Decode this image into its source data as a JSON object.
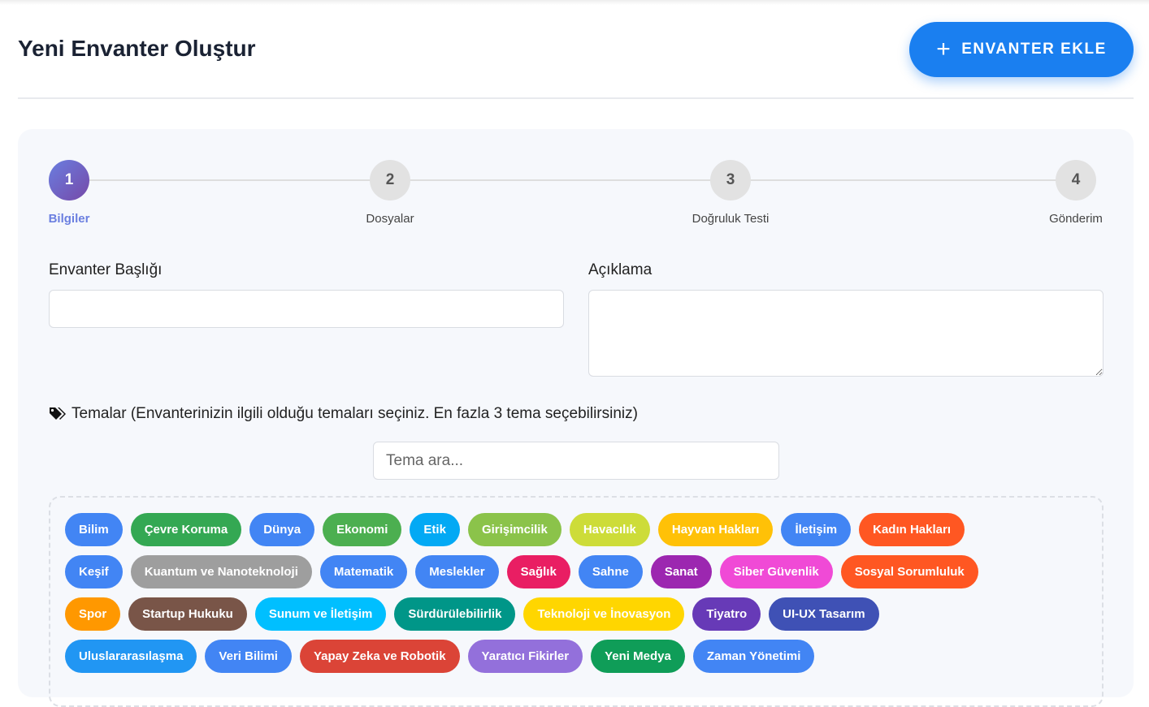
{
  "header": {
    "title": "Yeni Envanter Oluştur",
    "add_button": "ENVANTER EKLE",
    "add_icon": "plus-icon"
  },
  "stepper": {
    "active": 1,
    "steps": [
      {
        "num": "1",
        "label": "Bilgiler"
      },
      {
        "num": "2",
        "label": "Dosyalar"
      },
      {
        "num": "3",
        "label": "Doğruluk Testi"
      },
      {
        "num": "4",
        "label": "Gönderim"
      }
    ]
  },
  "form": {
    "title_label": "Envanter Başlığı",
    "title_value": "",
    "desc_label": "Açıklama",
    "desc_value": "",
    "themes_label": "Temalar (Envanterinizin ilgili olduğu temaları seçiniz. En fazla 3 tema seçebilirsiniz)",
    "themes_icon": "tags-icon",
    "search_placeholder": "Tema ara..."
  },
  "tag_rows": [
    [
      {
        "label": "Bilim",
        "color": "#4285f4"
      },
      {
        "label": "Çevre Koruma",
        "color": "#34a853"
      },
      {
        "label": "Dünya",
        "color": "#4285f4"
      },
      {
        "label": "Ekonomi",
        "color": "#4caf50"
      },
      {
        "label": "Etik",
        "color": "#03a9f4"
      },
      {
        "label": "Girişimcilik",
        "color": "#8bc34a"
      },
      {
        "label": "Havacılık",
        "color": "#cddc39"
      },
      {
        "label": "Hayvan Hakları",
        "color": "#ffc107"
      },
      {
        "label": "İletişim",
        "color": "#4285f4"
      },
      {
        "label": "Kadın Hakları",
        "color": "#ff5722"
      }
    ],
    [
      {
        "label": "Keşif",
        "color": "#4285f4"
      },
      {
        "label": "Kuantum ve Nanoteknoloji",
        "color": "#9e9e9e"
      },
      {
        "label": "Matematik",
        "color": "#4285f4"
      },
      {
        "label": "Meslekler",
        "color": "#4285f4"
      },
      {
        "label": "Sağlık",
        "color": "#e91e63"
      },
      {
        "label": "Sahne",
        "color": "#4285f4"
      },
      {
        "label": "Sanat",
        "color": "#9c27b0"
      },
      {
        "label": "Siber Güvenlik",
        "color": "#f04ad6"
      },
      {
        "label": "Sosyal Sorumluluk",
        "color": "#ff5722"
      }
    ],
    [
      {
        "label": "Spor",
        "color": "#ff9800"
      },
      {
        "label": "Startup Hukuku",
        "color": "#795548"
      },
      {
        "label": "Sunum ve İletişim",
        "color": "#00bfff"
      },
      {
        "label": "Sürdürülebilirlik",
        "color": "#009688"
      },
      {
        "label": "Teknoloji ve İnovasyon",
        "color": "#ffd600"
      },
      {
        "label": "Tiyatro",
        "color": "#673ab7"
      },
      {
        "label": "UI-UX Tasarım",
        "color": "#3f51b5"
      }
    ],
    [
      {
        "label": "Uluslararasılaşma",
        "color": "#2196f3"
      },
      {
        "label": "Veri Bilimi",
        "color": "#4285f4"
      },
      {
        "label": "Yapay Zeka ve Robotik",
        "color": "#db4437"
      },
      {
        "label": "Yaratıcı Fikirler",
        "color": "#9370db"
      },
      {
        "label": "Yeni Medya",
        "color": "#0f9d58"
      },
      {
        "label": "Zaman Yönetimi",
        "color": "#4285f4"
      }
    ]
  ]
}
